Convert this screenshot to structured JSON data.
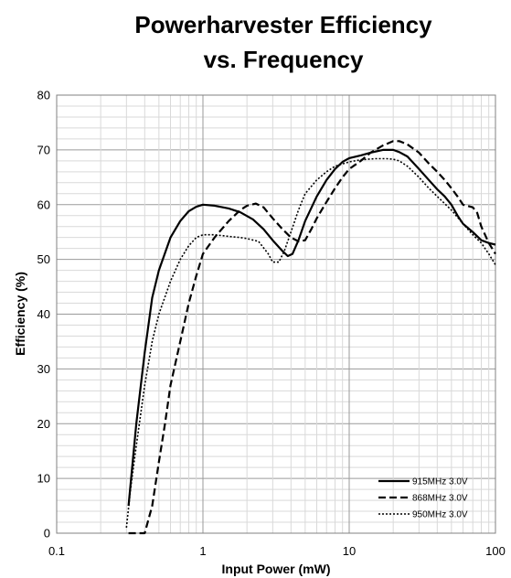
{
  "chart_data": {
    "type": "line",
    "title_line1": "Powerharvester Efficiency",
    "title_line2": "vs. Frequency",
    "xlabel": "Input Power (mW)",
    "ylabel": "Efficiency (%)",
    "x_scale": "log",
    "xlim": [
      0.1,
      100
    ],
    "ylim": [
      0,
      80
    ],
    "x_ticks": [
      0.1,
      1,
      10,
      100
    ],
    "x_tick_labels": [
      "0.1",
      "1",
      "10",
      "100"
    ],
    "y_ticks": [
      0,
      10,
      20,
      30,
      40,
      50,
      60,
      70,
      80
    ],
    "y_tick_labels": [
      "0",
      "10",
      "20",
      "30",
      "40",
      "50",
      "60",
      "70",
      "80"
    ],
    "grid": true,
    "legend_position": "bottom-right",
    "series": [
      {
        "name": "915MHz 3.0V",
        "style": "solid",
        "color": "#000000",
        "points": [
          [
            0.31,
            5
          ],
          [
            0.35,
            20
          ],
          [
            0.4,
            33
          ],
          [
            0.45,
            43
          ],
          [
            0.5,
            48
          ],
          [
            0.6,
            54
          ],
          [
            0.7,
            57
          ],
          [
            0.8,
            58.8
          ],
          [
            0.9,
            59.6
          ],
          [
            1.0,
            60
          ],
          [
            1.2,
            59.8
          ],
          [
            1.5,
            59.3
          ],
          [
            1.8,
            58.6
          ],
          [
            2.2,
            57.3
          ],
          [
            2.6,
            55.5
          ],
          [
            3.0,
            53.5
          ],
          [
            3.5,
            51.5
          ],
          [
            3.8,
            50.6
          ],
          [
            4.1,
            51
          ],
          [
            4.5,
            53.5
          ],
          [
            5.0,
            57
          ],
          [
            6.0,
            61.5
          ],
          [
            7.0,
            64.5
          ],
          [
            8.0,
            66.5
          ],
          [
            9.0,
            67.8
          ],
          [
            10,
            68.5
          ],
          [
            12,
            69
          ],
          [
            14,
            69.5
          ],
          [
            17,
            70
          ],
          [
            20,
            70
          ],
          [
            22,
            69.6
          ],
          [
            25,
            68.8
          ],
          [
            30,
            66.5
          ],
          [
            35,
            64.5
          ],
          [
            40,
            62.8
          ],
          [
            45,
            61.5
          ],
          [
            50,
            60
          ],
          [
            55,
            58
          ],
          [
            60,
            56.5
          ],
          [
            70,
            55
          ],
          [
            80,
            53.5
          ],
          [
            90,
            53
          ],
          [
            100,
            52.7
          ]
        ]
      },
      {
        "name": "868MHz 3.0V",
        "style": "dashed",
        "color": "#000000",
        "points": [
          [
            0.31,
            0
          ],
          [
            0.35,
            -0.3
          ],
          [
            0.4,
            0
          ],
          [
            0.45,
            5
          ],
          [
            0.5,
            13
          ],
          [
            0.55,
            20
          ],
          [
            0.6,
            27
          ],
          [
            0.7,
            35
          ],
          [
            0.8,
            42
          ],
          [
            0.9,
            47
          ],
          [
            1.0,
            51
          ],
          [
            1.2,
            54
          ],
          [
            1.5,
            57
          ],
          [
            1.8,
            59
          ],
          [
            2.0,
            59.8
          ],
          [
            2.3,
            60.2
          ],
          [
            2.6,
            59.5
          ],
          [
            3.0,
            57.5
          ],
          [
            3.5,
            55.5
          ],
          [
            4.0,
            54
          ],
          [
            4.5,
            53.3
          ],
          [
            5.0,
            53.5
          ],
          [
            5.5,
            55.5
          ],
          [
            6.0,
            57.5
          ],
          [
            7.0,
            60.5
          ],
          [
            8.0,
            63
          ],
          [
            9.0,
            65
          ],
          [
            10,
            66.5
          ],
          [
            12,
            68
          ],
          [
            14,
            69.5
          ],
          [
            17,
            70.8
          ],
          [
            20,
            71.6
          ],
          [
            22,
            71.6
          ],
          [
            25,
            71
          ],
          [
            30,
            69.5
          ],
          [
            35,
            67.5
          ],
          [
            40,
            66
          ],
          [
            45,
            64.5
          ],
          [
            50,
            63
          ],
          [
            55,
            61.5
          ],
          [
            60,
            60
          ],
          [
            70,
            59.5
          ],
          [
            75,
            58.5
          ],
          [
            80,
            56
          ],
          [
            90,
            53
          ],
          [
            100,
            51
          ]
        ]
      },
      {
        "name": "950MHz 3.0V",
        "style": "dotted",
        "color": "#000000",
        "points": [
          [
            0.3,
            1
          ],
          [
            0.32,
            8
          ],
          [
            0.35,
            16
          ],
          [
            0.4,
            27
          ],
          [
            0.45,
            35
          ],
          [
            0.5,
            40
          ],
          [
            0.6,
            46
          ],
          [
            0.7,
            50
          ],
          [
            0.8,
            52.5
          ],
          [
            0.9,
            54
          ],
          [
            1.0,
            54.5
          ],
          [
            1.2,
            54.5
          ],
          [
            1.5,
            54.2
          ],
          [
            1.8,
            54
          ],
          [
            2.0,
            53.8
          ],
          [
            2.4,
            53.3
          ],
          [
            2.8,
            51
          ],
          [
            3.0,
            49.5
          ],
          [
            3.3,
            49.5
          ],
          [
            3.6,
            51.5
          ],
          [
            4.0,
            55
          ],
          [
            4.5,
            59
          ],
          [
            5.0,
            62
          ],
          [
            6.0,
            64.5
          ],
          [
            7.0,
            66
          ],
          [
            8.0,
            67
          ],
          [
            10,
            67.8
          ],
          [
            12,
            68.2
          ],
          [
            15,
            68.4
          ],
          [
            18,
            68.4
          ],
          [
            20,
            68.3
          ],
          [
            22,
            68
          ],
          [
            25,
            67
          ],
          [
            30,
            65
          ],
          [
            35,
            63
          ],
          [
            40,
            61.5
          ],
          [
            50,
            59
          ],
          [
            60,
            56.5
          ],
          [
            70,
            54.5
          ],
          [
            80,
            53
          ],
          [
            90,
            51
          ],
          [
            100,
            49
          ]
        ]
      }
    ]
  }
}
